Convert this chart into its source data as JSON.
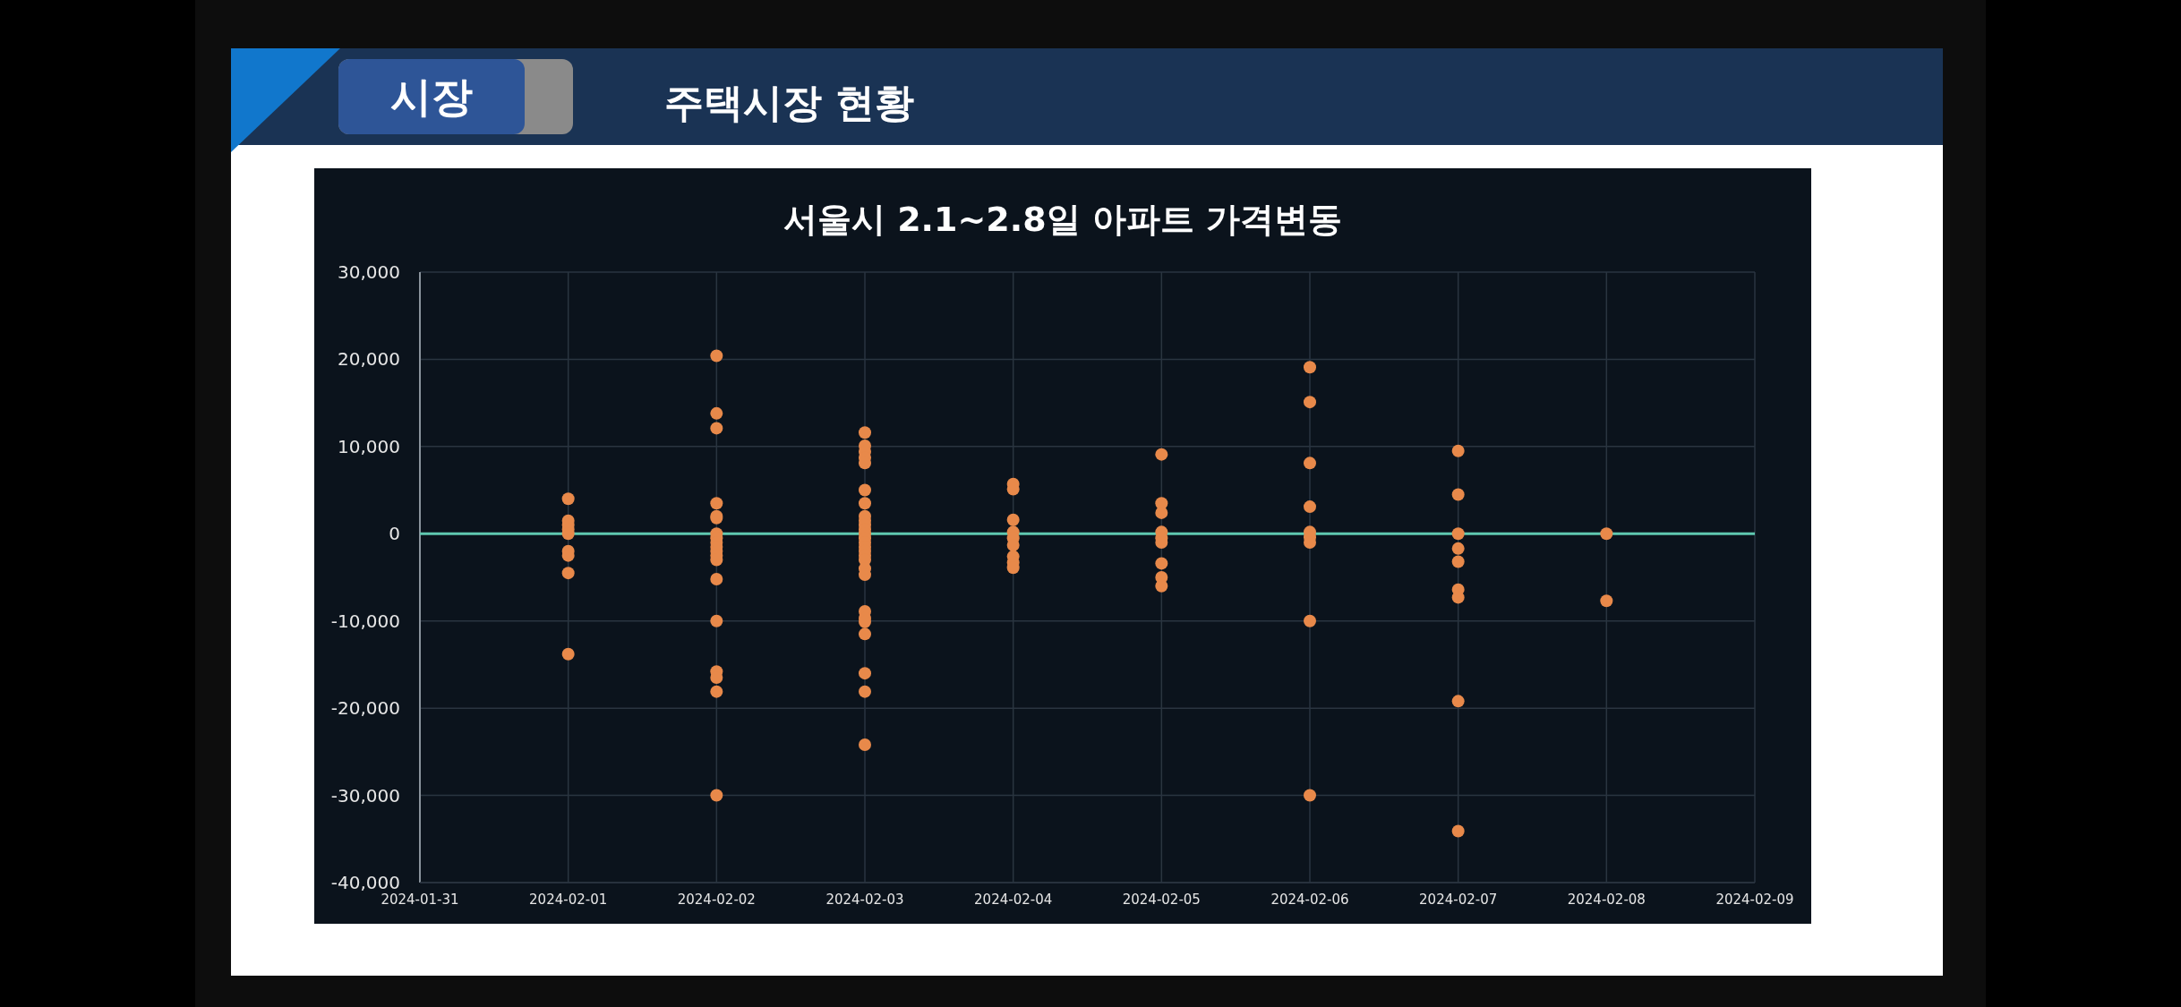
{
  "chart_data": {
    "type": "scatter",
    "title": "서울시 2.1~2.8일  아파트 가격변동",
    "annotations": [
      "시장",
      "주택시장 현황"
    ],
    "series": [
      {
        "color": "#e8894a",
        "x": [
          "2024-02-01",
          "2024-02-01",
          "2024-02-01",
          "2024-02-01",
          "2024-02-01",
          "2024-02-01",
          "2024-02-01",
          "2024-02-01",
          "2024-02-01",
          "2024-02-02",
          "2024-02-02",
          "2024-02-02",
          "2024-02-02",
          "2024-02-02",
          "2024-02-02",
          "2024-02-02",
          "2024-02-02",
          "2024-02-02",
          "2024-02-02",
          "2024-02-02",
          "2024-02-02",
          "2024-02-02",
          "2024-02-02",
          "2024-02-02",
          "2024-02-02",
          "2024-02-02",
          "2024-02-02",
          "2024-02-02",
          "2024-02-03",
          "2024-02-03",
          "2024-02-03",
          "2024-02-03",
          "2024-02-03",
          "2024-02-03",
          "2024-02-03",
          "2024-02-03",
          "2024-02-03",
          "2024-02-03",
          "2024-02-03",
          "2024-02-03",
          "2024-02-03",
          "2024-02-03",
          "2024-02-03",
          "2024-02-03",
          "2024-02-03",
          "2024-02-03",
          "2024-02-03",
          "2024-02-03",
          "2024-02-03",
          "2024-02-03",
          "2024-02-03",
          "2024-02-03",
          "2024-02-03",
          "2024-02-03",
          "2024-02-03",
          "2024-02-04",
          "2024-02-04",
          "2024-02-04",
          "2024-02-04",
          "2024-02-04",
          "2024-02-04",
          "2024-02-04",
          "2024-02-04",
          "2024-02-04",
          "2024-02-05",
          "2024-02-05",
          "2024-02-05",
          "2024-02-05",
          "2024-02-05",
          "2024-02-05",
          "2024-02-05",
          "2024-02-05",
          "2024-02-05",
          "2024-02-06",
          "2024-02-06",
          "2024-02-06",
          "2024-02-06",
          "2024-02-06",
          "2024-02-06",
          "2024-02-06",
          "2024-02-06",
          "2024-02-06",
          "2024-02-07",
          "2024-02-07",
          "2024-02-07",
          "2024-02-07",
          "2024-02-07",
          "2024-02-07",
          "2024-02-07",
          "2024-02-07",
          "2024-02-07",
          "2024-02-08",
          "2024-02-08"
        ],
        "values": [
          4000,
          1500,
          1000,
          500,
          0,
          -2000,
          -2500,
          -4500,
          -13800,
          20400,
          13800,
          12100,
          3500,
          2000,
          1800,
          0,
          -500,
          -1000,
          -1500,
          -2000,
          -2500,
          -3000,
          -5200,
          -10000,
          -15800,
          -16500,
          -18100,
          -30000,
          11600,
          10100,
          9400,
          8700,
          8100,
          5000,
          3500,
          2000,
          1500,
          1000,
          500,
          0,
          -500,
          -1000,
          -1500,
          -2000,
          -2500,
          -3000,
          -4000,
          -4700,
          -8900,
          -9700,
          -10100,
          -11500,
          -16000,
          -18100,
          -24200,
          5700,
          5100,
          1600,
          200,
          -500,
          -1300,
          -2600,
          -3300,
          -3900,
          9100,
          3500,
          2400,
          200,
          -500,
          -1000,
          -3400,
          -5000,
          -6000,
          19100,
          15100,
          8100,
          3100,
          200,
          -400,
          -1000,
          -10000,
          -30000,
          9500,
          4500,
          0,
          -1700,
          -3200,
          -6400,
          -7300,
          -19200,
          -34100,
          0,
          -7700
        ]
      }
    ],
    "xlim": [
      "2024-01-31",
      "2024-02-09"
    ],
    "xticks": [
      "2024-01-31",
      "2024-02-01",
      "2024-02-02",
      "2024-02-03",
      "2024-02-04",
      "2024-02-05",
      "2024-02-06",
      "2024-02-07",
      "2024-02-08",
      "2024-02-09"
    ],
    "ylim": [
      -40000,
      30000
    ],
    "yticks": [
      {
        "value": -40000,
        "label": "-40,000"
      },
      {
        "value": -30000,
        "label": "-30,000"
      },
      {
        "value": -20000,
        "label": "-20,000"
      },
      {
        "value": -10000,
        "label": "-10,000"
      },
      0,
      {
        "value": 10000,
        "label": "10,000"
      },
      {
        "value": 20000,
        "label": "20,000"
      },
      {
        "value": 30000,
        "label": "30,000"
      }
    ],
    "ref_lines": [
      {
        "axis": "y",
        "value": 0,
        "color": "#5fc8b0"
      }
    ],
    "grid": true,
    "marker": "circle"
  }
}
